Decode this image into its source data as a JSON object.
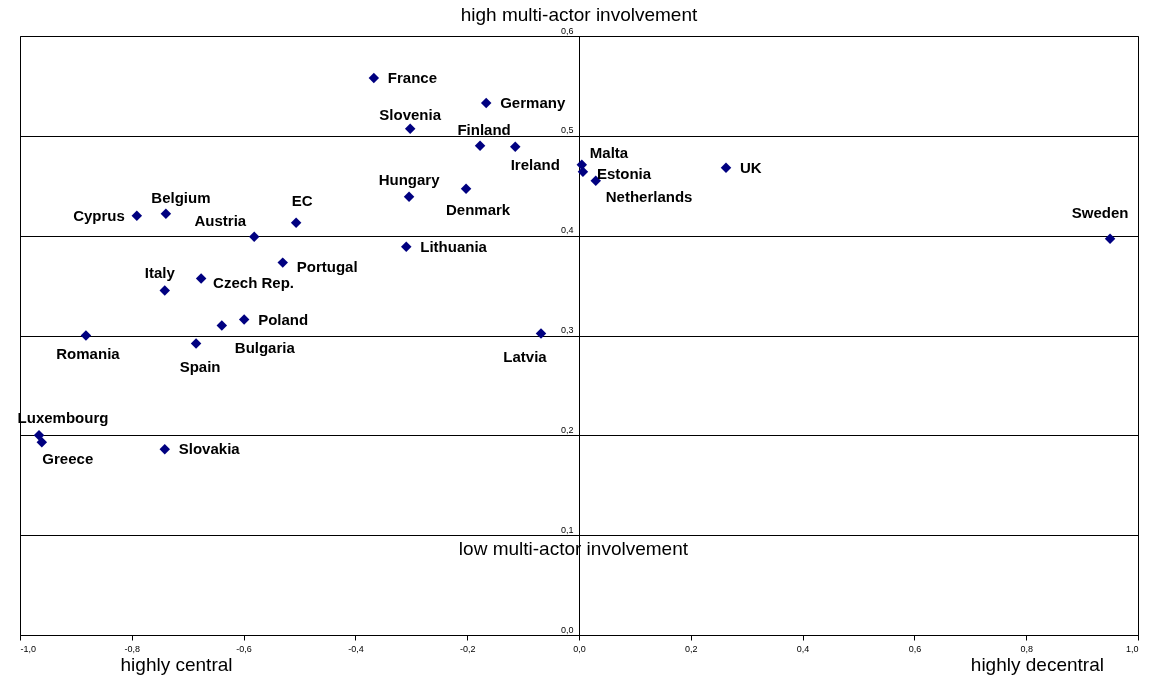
{
  "chart_data": {
    "type": "scatter",
    "annotations": [
      "high multi-actor involvement",
      "low multi-actor involvement",
      "highly central",
      "highly decentral"
    ],
    "x": [
      -0.367,
      -0.166,
      -0.302,
      -0.177,
      -0.114,
      0.005,
      0.007,
      0.03,
      0.263,
      0.95,
      -0.304,
      -0.202,
      -0.506,
      -0.739,
      -0.791,
      -0.581,
      -0.309,
      -0.53,
      -0.676,
      -0.741,
      -0.599,
      -0.639,
      -0.882,
      -0.685,
      -0.068,
      -0.966,
      -0.961,
      -0.741
    ],
    "values": [
      0.558,
      0.533,
      0.507,
      0.49,
      0.489,
      0.471,
      0.464,
      0.455,
      0.468,
      0.397,
      0.439,
      0.447,
      0.413,
      0.422,
      0.42,
      0.399,
      0.389,
      0.373,
      0.357,
      0.345,
      0.316,
      0.31,
      0.3,
      0.292,
      0.302,
      0.2,
      0.193,
      0.186
    ],
    "value_labels": [
      "France",
      "Germany",
      "Slovenia",
      "Finland",
      "Ireland",
      "Malta",
      "Estonia",
      "Netherlands",
      "UK",
      "Sweden",
      "Hungary",
      "Denmark",
      "EC",
      "Belgium",
      "Cyprus",
      "Austria",
      "Lithuania",
      "Portugal",
      "Czech Rep.",
      "Italy",
      "Poland",
      "Bulgaria",
      "Romania",
      "Spain",
      "Latvia",
      "Luxembourg",
      "Greece",
      "Slovakia"
    ],
    "color": "#000080",
    "marker": "diamond",
    "grid": "y",
    "xlim": [
      -1,
      1
    ],
    "ylim": [
      0,
      0.6
    ],
    "xticks": [
      {
        "value": -1,
        "label": "-1,0"
      },
      {
        "value": -0.8,
        "label": "-0,8"
      },
      {
        "value": -0.6,
        "label": "-0,6"
      },
      {
        "value": -0.4,
        "label": "-0,4"
      },
      {
        "value": -0.2,
        "label": "-0,2"
      },
      {
        "value": 0,
        "label": "0,0"
      },
      {
        "value": 0.2,
        "label": "0,2"
      },
      {
        "value": 0.4,
        "label": "0,4"
      },
      {
        "value": 0.6,
        "label": "0,6"
      },
      {
        "value": 0.8,
        "label": "0,8"
      },
      {
        "value": 1,
        "label": "1,0"
      }
    ],
    "yticks": [
      {
        "value": 0,
        "label": "0,0"
      },
      {
        "value": 0.1,
        "label": "0,1"
      },
      {
        "value": 0.2,
        "label": "0,2"
      },
      {
        "value": 0.3,
        "label": "0,3"
      },
      {
        "value": 0.4,
        "label": "0,4"
      },
      {
        "value": 0.5,
        "label": "0,5"
      },
      {
        "value": 0.6,
        "label": "0,6"
      }
    ]
  }
}
